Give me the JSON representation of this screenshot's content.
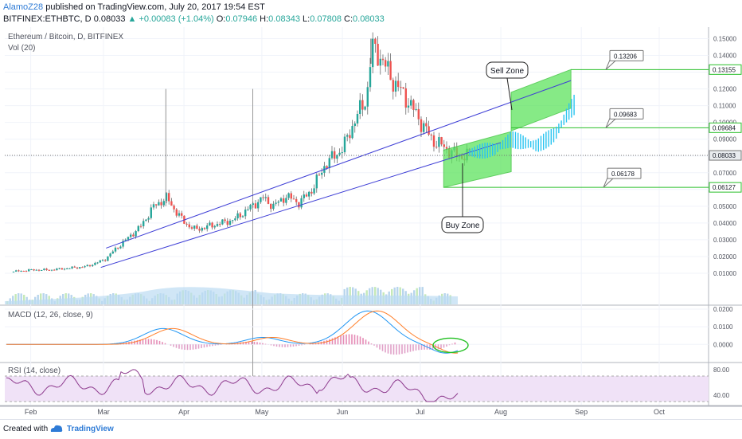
{
  "header": {
    "publisher": "AlamoZ28",
    "publish_text": "published on TradingView.com, July 20, 2017 19:54 EST",
    "symbol": "BITFINEX:ETHBTC, D",
    "last": "0.08033",
    "change": "+0.00083 (+1.04%)",
    "open_label": "O:",
    "open": "0.07946",
    "high_label": "H:",
    "high": "0.08343",
    "low_label": "L:",
    "low": "0.07808",
    "close_label": "C:",
    "close": "0.08033"
  },
  "panes": {
    "main_title": "Ethereum / Bitcoin, D, BITFINEX",
    "volume_title": "Vol (20)",
    "macd_title": "MACD (12, 26, close, 9)",
    "rsi_title": "RSI (14, close)"
  },
  "footer": {
    "created_with": "Created with",
    "brand": "TradingView"
  },
  "colors": {
    "up": "#26a69a",
    "down": "#ef5350",
    "channel": "#3f3fd6",
    "zone_fill": "#5ee35e",
    "zone_line": "#2bbf2b",
    "projection": "#29c4f0",
    "macd": "#2196f3",
    "signal": "#ff7f2a",
    "rsi": "#8e3b8e",
    "rsi_band": "#f0e2f7"
  },
  "chart_data": [
    {
      "type": "candlestick",
      "title": "Ethereum / Bitcoin, D, BITFINEX",
      "x_ticks": [
        "Feb",
        "Mar",
        "Apr",
        "May",
        "Jun",
        "Jul",
        "Aug",
        "Sep",
        "Oct"
      ],
      "y_ticks": [
        "0.15000",
        "0.14000",
        "0.13000",
        "0.12000",
        "0.11000",
        "0.10000",
        "0.09000",
        "0.08000",
        "0.07000",
        "0.06000",
        "0.05000",
        "0.04000",
        "0.03000",
        "0.02000",
        "0.01000"
      ],
      "ylim": [
        0.0,
        0.155
      ],
      "price_tags": [
        "0.13155",
        "0.09684",
        "0.08033",
        "0.06127"
      ],
      "level_callouts": [
        "0.13206",
        "0.09683",
        "0.06178"
      ],
      "annotations": [
        "Sell Zone",
        "Buy Zone"
      ],
      "x_dates": [
        "2017-01-25",
        "2017-02-01",
        "2017-02-08",
        "2017-02-15",
        "2017-02-22",
        "2017-03-01",
        "2017-03-05",
        "2017-03-10",
        "2017-03-15",
        "2017-03-20",
        "2017-03-25",
        "2017-03-28",
        "2017-04-01",
        "2017-04-05",
        "2017-04-10",
        "2017-04-15",
        "2017-04-20",
        "2017-04-25",
        "2017-05-01",
        "2017-05-05",
        "2017-05-10",
        "2017-05-15",
        "2017-05-20",
        "2017-05-25",
        "2017-06-01",
        "2017-06-05",
        "2017-06-10",
        "2017-06-12",
        "2017-06-15",
        "2017-06-20",
        "2017-06-25",
        "2017-07-01",
        "2017-07-05",
        "2017-07-10",
        "2017-07-15",
        "2017-07-20"
      ],
      "close": [
        0.011,
        0.012,
        0.012,
        0.013,
        0.014,
        0.018,
        0.024,
        0.031,
        0.038,
        0.05,
        0.055,
        0.048,
        0.04,
        0.036,
        0.038,
        0.04,
        0.042,
        0.048,
        0.055,
        0.05,
        0.056,
        0.052,
        0.06,
        0.075,
        0.085,
        0.1,
        0.115,
        0.145,
        0.14,
        0.125,
        0.115,
        0.1,
        0.09,
        0.085,
        0.08,
        0.08033
      ],
      "high_extremes": [
        0.12,
        0.15
      ],
      "low_extremes": [
        0.014,
        0.078
      ],
      "channel": {
        "upper": [
          [
            "2017-03-02",
            0.025
          ],
          [
            "2017-08-28",
            0.125
          ]
        ],
        "lower": [
          [
            "2017-02-28",
            0.0135
          ],
          [
            "2017-08-01",
            0.088
          ]
        ]
      },
      "zones": [
        {
          "name": "Sell Zone",
          "x_start": "2017-08-05",
          "x_end": "2017-08-28",
          "y_low": [
            0.095,
            0.1085
          ],
          "y_high": [
            0.118,
            0.13155
          ]
        },
        {
          "name": "Buy Zone",
          "x_start": "2017-07-10",
          "x_end": "2017-08-05",
          "y_low": [
            0.0613,
            0.0706
          ],
          "y_high": [
            0.0835,
            0.0945
          ]
        }
      ],
      "levels": [
        0.13155,
        0.09684,
        0.06127
      ],
      "last_price": 0.08033
    },
    {
      "type": "bar",
      "title": "Vol (20)",
      "note": "volume bars on same time axis"
    },
    {
      "type": "line",
      "title": "MACD (12, 26, close, 9)",
      "y_ticks": [
        "0.0200",
        "0.0100",
        "0.0000"
      ],
      "ylim": [
        -0.008,
        0.02
      ]
    },
    {
      "type": "line",
      "title": "RSI (14, close)",
      "y_ticks": [
        "80.00",
        "40.00"
      ],
      "ylim": [
        25,
        90
      ],
      "band": [
        30,
        70
      ]
    }
  ]
}
